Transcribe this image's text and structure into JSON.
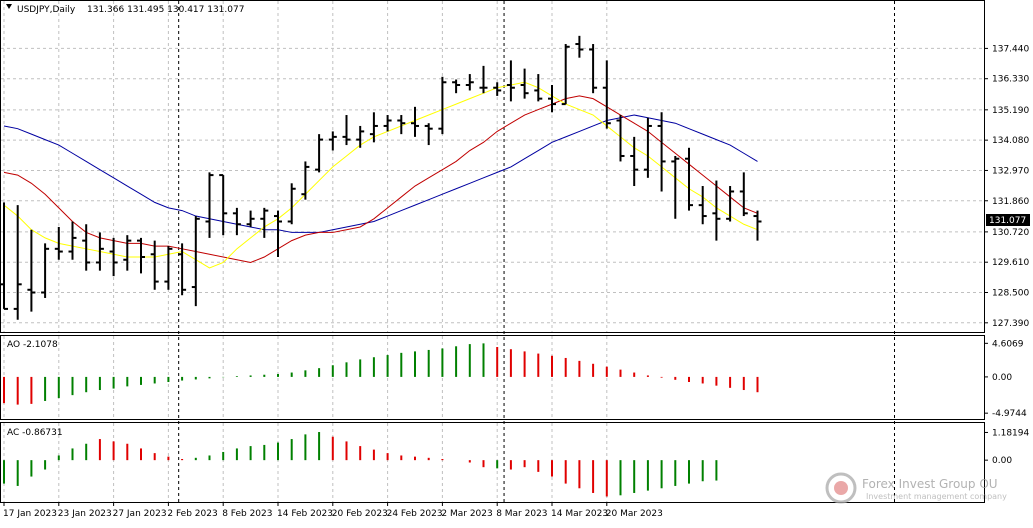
{
  "chart_data": {
    "type": "ohlc",
    "symbol_label": "USDJPY,Daily",
    "ohlc_header": "131.366 131.495 130.417 131.077",
    "last_price": "131.077",
    "price_axis_ticks": [
      "137.440",
      "136.330",
      "135.190",
      "134.080",
      "132.970",
      "131.860",
      "130.720",
      "129.610",
      "128.500",
      "127.390"
    ],
    "price_range": [
      127.2,
      138.7
    ],
    "date_labels": [
      "17 Jan 2023",
      "23 Jan 2023",
      "27 Jan 2023",
      "2 Feb 2023",
      "8 Feb 2023",
      "14 Feb 2023",
      "20 Feb 2023",
      "24 Feb 2023",
      "2 Mar 2023",
      "8 Mar 2023",
      "14 Mar 2023",
      "20 Mar 2023"
    ],
    "date_label_bar_index": [
      0,
      4,
      8,
      12,
      16,
      20,
      24,
      28,
      32,
      36,
      40,
      44
    ],
    "bars": [
      {
        "o": 128.8,
        "h": 131.8,
        "l": 127.9,
        "c": 127.9
      },
      {
        "o": 127.9,
        "h": 131.7,
        "l": 127.5,
        "c": 128.8
      },
      {
        "o": 128.6,
        "h": 130.8,
        "l": 127.8,
        "c": 128.5
      },
      {
        "o": 128.5,
        "h": 130.3,
        "l": 128.3,
        "c": 130.1
      },
      {
        "o": 130.1,
        "h": 130.9,
        "l": 129.7,
        "c": 130.0
      },
      {
        "o": 130.0,
        "h": 131.1,
        "l": 129.7,
        "c": 130.5
      },
      {
        "o": 130.4,
        "h": 131.0,
        "l": 129.3,
        "c": 129.6
      },
      {
        "o": 129.6,
        "h": 130.7,
        "l": 129.3,
        "c": 130.1
      },
      {
        "o": 130.0,
        "h": 130.5,
        "l": 129.1,
        "c": 129.6
      },
      {
        "o": 129.7,
        "h": 130.6,
        "l": 129.3,
        "c": 130.4
      },
      {
        "o": 130.4,
        "h": 130.5,
        "l": 129.2,
        "c": 129.8
      },
      {
        "o": 129.9,
        "h": 130.4,
        "l": 128.6,
        "c": 128.9
      },
      {
        "o": 128.9,
        "h": 130.2,
        "l": 128.6,
        "c": 130.1
      },
      {
        "o": 129.9,
        "h": 130.3,
        "l": 128.4,
        "c": 128.6
      },
      {
        "o": 128.7,
        "h": 131.3,
        "l": 128.0,
        "c": 131.2
      },
      {
        "o": 131.1,
        "h": 132.9,
        "l": 130.5,
        "c": 132.8
      },
      {
        "o": 132.8,
        "h": 132.8,
        "l": 130.6,
        "c": 131.4
      },
      {
        "o": 131.4,
        "h": 131.6,
        "l": 130.6,
        "c": 131.0
      },
      {
        "o": 131.0,
        "h": 131.5,
        "l": 130.9,
        "c": 131.2
      },
      {
        "o": 131.2,
        "h": 131.6,
        "l": 130.5,
        "c": 131.5
      },
      {
        "o": 131.3,
        "h": 131.5,
        "l": 129.8,
        "c": 131.1
      },
      {
        "o": 131.1,
        "h": 132.5,
        "l": 131.0,
        "c": 132.3
      },
      {
        "o": 132.1,
        "h": 133.3,
        "l": 131.9,
        "c": 133.1
      },
      {
        "o": 133.0,
        "h": 134.3,
        "l": 132.9,
        "c": 134.1
      },
      {
        "o": 134.1,
        "h": 134.4,
        "l": 133.7,
        "c": 134.2
      },
      {
        "o": 134.2,
        "h": 135.0,
        "l": 133.9,
        "c": 134.1
      },
      {
        "o": 134.1,
        "h": 134.6,
        "l": 133.8,
        "c": 134.4
      },
      {
        "o": 134.3,
        "h": 135.1,
        "l": 134.0,
        "c": 134.6
      },
      {
        "o": 134.6,
        "h": 135.0,
        "l": 134.4,
        "c": 134.8
      },
      {
        "o": 134.8,
        "h": 135.0,
        "l": 134.3,
        "c": 134.7
      },
      {
        "o": 134.7,
        "h": 135.3,
        "l": 134.2,
        "c": 134.6
      },
      {
        "o": 134.6,
        "h": 134.7,
        "l": 133.9,
        "c": 134.5
      },
      {
        "o": 134.5,
        "h": 136.4,
        "l": 134.3,
        "c": 136.2
      },
      {
        "o": 136.2,
        "h": 136.3,
        "l": 135.8,
        "c": 136.1
      },
      {
        "o": 136.1,
        "h": 136.5,
        "l": 135.9,
        "c": 136.2
      },
      {
        "o": 136.0,
        "h": 136.8,
        "l": 135.8,
        "c": 136.0
      },
      {
        "o": 136.0,
        "h": 136.2,
        "l": 135.7,
        "c": 135.9
      },
      {
        "o": 136.1,
        "h": 137.0,
        "l": 135.5,
        "c": 136.0
      },
      {
        "o": 136.1,
        "h": 136.7,
        "l": 135.6,
        "c": 135.8
      },
      {
        "o": 135.9,
        "h": 136.5,
        "l": 135.5,
        "c": 135.6
      },
      {
        "o": 135.6,
        "h": 136.1,
        "l": 135.1,
        "c": 135.4
      },
      {
        "o": 135.4,
        "h": 137.6,
        "l": 135.4,
        "c": 137.5
      },
      {
        "o": 137.6,
        "h": 137.9,
        "l": 137.1,
        "c": 137.4
      },
      {
        "o": 137.4,
        "h": 137.6,
        "l": 135.8,
        "c": 136.0
      },
      {
        "o": 136.0,
        "h": 137.0,
        "l": 134.5,
        "c": 134.7
      },
      {
        "o": 134.8,
        "h": 135.0,
        "l": 133.3,
        "c": 133.5
      },
      {
        "o": 133.5,
        "h": 134.2,
        "l": 132.4,
        "c": 133.0
      },
      {
        "o": 133.0,
        "h": 134.9,
        "l": 132.7,
        "c": 134.6
      },
      {
        "o": 134.6,
        "h": 135.1,
        "l": 132.2,
        "c": 133.3
      },
      {
        "o": 133.3,
        "h": 133.5,
        "l": 131.2,
        "c": 133.4
      },
      {
        "o": 133.4,
        "h": 133.8,
        "l": 131.5,
        "c": 131.7
      },
      {
        "o": 131.7,
        "h": 132.4,
        "l": 131.0,
        "c": 131.3
      },
      {
        "o": 131.4,
        "h": 132.6,
        "l": 130.4,
        "c": 131.2
      },
      {
        "o": 131.2,
        "h": 132.4,
        "l": 131.1,
        "c": 132.2
      },
      {
        "o": 132.2,
        "h": 132.9,
        "l": 131.3,
        "c": 131.4
      },
      {
        "o": 131.3,
        "h": 131.5,
        "l": 130.4,
        "c": 131.1
      }
    ],
    "ma_series": [
      {
        "color": "#0000a0",
        "values": [
          134.6,
          134.5,
          134.3,
          134.1,
          133.9,
          133.6,
          133.3,
          133.0,
          132.7,
          132.4,
          132.1,
          131.8,
          131.6,
          131.5,
          131.3,
          131.2,
          131.1,
          131.0,
          130.9,
          130.8,
          130.8,
          130.7,
          130.7,
          130.7,
          130.8,
          130.9,
          131.0,
          131.1,
          131.3,
          131.5,
          131.7,
          131.9,
          132.1,
          132.3,
          132.5,
          132.7,
          132.9,
          133.1,
          133.4,
          133.7,
          134.0,
          134.2,
          134.4,
          134.6,
          134.8,
          134.9,
          135.0,
          134.9,
          134.8,
          134.7,
          134.5,
          134.3,
          134.1,
          133.9,
          133.6,
          133.3
        ]
      },
      {
        "color": "#c00000",
        "values": [
          132.9,
          132.8,
          132.5,
          132.1,
          131.6,
          131.1,
          130.7,
          130.5,
          130.4,
          130.3,
          130.3,
          130.2,
          130.2,
          130.1,
          130.0,
          129.9,
          129.8,
          129.7,
          129.6,
          129.8,
          130.1,
          130.4,
          130.6,
          130.7,
          130.7,
          130.8,
          130.9,
          131.2,
          131.6,
          132.0,
          132.4,
          132.7,
          133.0,
          133.3,
          133.7,
          134.0,
          134.4,
          134.7,
          135.0,
          135.2,
          135.4,
          135.6,
          135.7,
          135.6,
          135.3,
          135.0,
          134.7,
          134.4,
          134.0,
          133.6,
          133.2,
          132.8,
          132.4,
          132.0,
          131.6,
          131.4
        ]
      },
      {
        "color": "#ffff00",
        "values": [
          131.7,
          131.3,
          130.8,
          130.5,
          130.3,
          130.2,
          130.1,
          130.0,
          129.9,
          129.8,
          129.8,
          129.8,
          129.9,
          130.0,
          129.7,
          129.4,
          129.6,
          130.1,
          130.5,
          130.9,
          131.2,
          131.6,
          132.1,
          132.6,
          133.1,
          133.5,
          133.9,
          134.2,
          134.4,
          134.6,
          134.8,
          135.0,
          135.2,
          135.4,
          135.6,
          135.8,
          136.0,
          136.1,
          136.2,
          136.0,
          135.7,
          135.4,
          135.2,
          135.0,
          134.6,
          134.2,
          133.8,
          133.5,
          133.1,
          132.7,
          132.3,
          132.0,
          131.6,
          131.3,
          131.0,
          130.8
        ]
      }
    ],
    "ao": {
      "label": "AO -2.1078",
      "ticks": [
        "4.6069",
        "0.00",
        "-4.9744"
      ],
      "range": [
        -5.5,
        5.2
      ],
      "values": [
        -3.6,
        -3.8,
        -3.7,
        -3.3,
        -2.9,
        -2.5,
        -2.1,
        -1.8,
        -1.6,
        -1.3,
        -1.1,
        -0.9,
        -0.7,
        -0.5,
        -0.35,
        -0.2,
        -0.05,
        0.1,
        0.2,
        0.3,
        0.4,
        0.6,
        0.9,
        1.2,
        1.6,
        2.0,
        2.4,
        2.7,
        3.0,
        3.3,
        3.5,
        3.7,
        3.9,
        4.2,
        4.5,
        4.6,
        4.1,
        3.8,
        3.5,
        3.2,
        2.9,
        2.6,
        2.2,
        1.8,
        1.4,
        1.0,
        0.6,
        0.2,
        -0.1,
        -0.4,
        -0.7,
        -0.9,
        -1.2,
        -1.5,
        -1.8,
        -2.1
      ],
      "colors": [
        "red",
        "red",
        "red",
        "green",
        "green",
        "green",
        "green",
        "green",
        "green",
        "green",
        "green",
        "green",
        "green",
        "green",
        "green",
        "green",
        "green",
        "green",
        "green",
        "green",
        "green",
        "green",
        "green",
        "green",
        "green",
        "green",
        "green",
        "green",
        "green",
        "green",
        "green",
        "green",
        "green",
        "green",
        "green",
        "green",
        "red",
        "red",
        "red",
        "red",
        "red",
        "red",
        "red",
        "red",
        "red",
        "red",
        "red",
        "red",
        "red",
        "red",
        "red",
        "red",
        "red",
        "red",
        "red",
        "red"
      ],
      "positive_color": "#008000",
      "negative_color": "#e00000"
    },
    "ac": {
      "label": "AC -0.86731",
      "ticks": [
        "1.18194",
        "0.00"
      ],
      "range": [
        -1.7,
        1.5
      ],
      "values": [
        -1.0,
        -1.1,
        -0.7,
        -0.4,
        0.2,
        0.5,
        0.7,
        0.9,
        0.8,
        0.7,
        0.5,
        0.3,
        0.15,
        0.05,
        0.1,
        0.2,
        0.35,
        0.5,
        0.6,
        0.65,
        0.75,
        0.9,
        1.1,
        1.2,
        1.0,
        0.8,
        0.6,
        0.45,
        0.3,
        0.2,
        0.15,
        0.1,
        0.05,
        0.0,
        -0.1,
        -0.3,
        -0.35,
        -0.4,
        -0.3,
        -0.5,
        -0.7,
        -1.0,
        -1.2,
        -1.4,
        -1.55,
        -1.5,
        -1.4,
        -1.3,
        -1.2,
        -1.1,
        -1.0,
        -0.9,
        -0.87
      ],
      "colors": [
        "green",
        "green",
        "green",
        "green",
        "green",
        "green",
        "green",
        "red",
        "red",
        "red",
        "red",
        "red",
        "red",
        "red",
        "green",
        "green",
        "green",
        "green",
        "green",
        "green",
        "green",
        "green",
        "green",
        "green",
        "red",
        "red",
        "red",
        "red",
        "red",
        "red",
        "red",
        "red",
        "red",
        "red",
        "red",
        "red",
        "green",
        "red",
        "red",
        "red",
        "red",
        "red",
        "red",
        "red",
        "red",
        "green",
        "green",
        "green",
        "green",
        "green",
        "green",
        "green",
        "green"
      ],
      "positive_color": "#008000",
      "negative_color": "#e00000"
    },
    "watermark_text": "Forex Invest Group OU",
    "watermark_subtext": "Investment management company",
    "xlabel": "",
    "ylabel": "",
    "grid": true
  }
}
